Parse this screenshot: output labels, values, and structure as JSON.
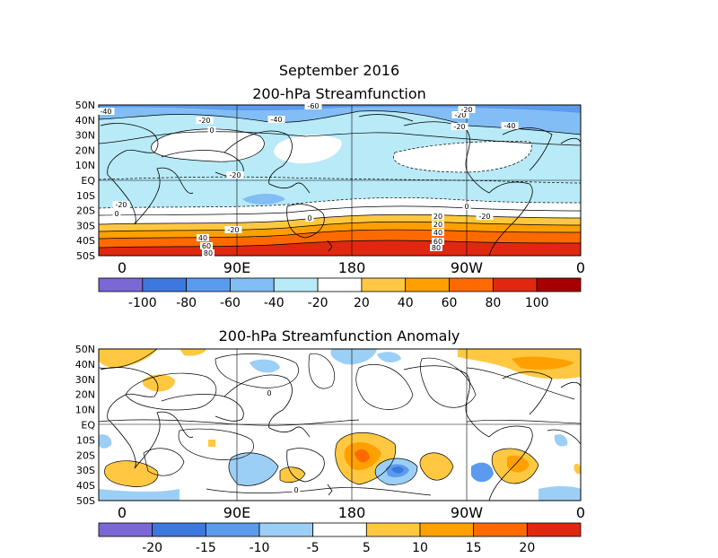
{
  "titles": {
    "month": "September 2016",
    "map1": "200-hPa Streamfunction",
    "map2": "200-hPa Streamfunction Anomaly"
  },
  "lat_labels": [
    "50N",
    "40N",
    "30N",
    "20N",
    "10N",
    "EQ",
    "10S",
    "20S",
    "30S",
    "40S",
    "50S"
  ],
  "lon_labels": [
    "0",
    "90E",
    "180",
    "90W",
    "0"
  ],
  "colorbar1": {
    "labels": [
      "-100",
      "-80",
      "-60",
      "-40",
      "-20",
      "20",
      "40",
      "60",
      "80",
      "100"
    ],
    "colors": [
      "#7b68d6",
      "#3d78e0",
      "#5b9bef",
      "#82bdf5",
      "#b8eaf7",
      "#ffffff",
      "#ffc840",
      "#ffa000",
      "#ff6a00",
      "#e02810",
      "#a80000"
    ]
  },
  "colorbar2": {
    "labels": [
      "-20",
      "-15",
      "-10",
      "-5",
      "5",
      "10",
      "15",
      "20"
    ],
    "colors": [
      "#7b68d6",
      "#3d78e0",
      "#5b9bef",
      "#9ccff6",
      "#ffffff",
      "#ffc840",
      "#ffa000",
      "#ff6a00",
      "#e02810"
    ]
  },
  "map1_contour_labels": [
    "-40",
    "-60",
    "-20",
    "-40",
    "-20",
    "-20",
    "-40",
    "-20",
    "0",
    "-20",
    "-20",
    "0",
    "-20",
    "0",
    "0",
    "-20",
    "20",
    "20",
    "40",
    "40",
    "60",
    "60",
    "80",
    "80"
  ],
  "map2_contour_labels": [
    "0",
    "0"
  ]
}
